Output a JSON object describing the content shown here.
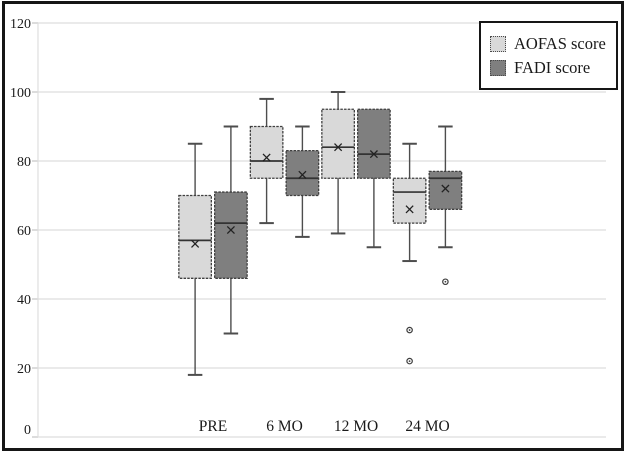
{
  "chart_data": {
    "type": "boxplot",
    "title": "",
    "xlabel": "",
    "ylabel": "",
    "categories": [
      "PRE",
      "6 MO",
      "12 MO",
      "24 MO"
    ],
    "y_axis": {
      "min": 0,
      "max": 120,
      "tick_step": 20,
      "tick_labels": [
        "0",
        "20",
        "40",
        "60",
        "80",
        "100",
        "120"
      ]
    },
    "grid": "horizontal gridlines on",
    "legend": {
      "position": "top-right",
      "border": true
    },
    "series": [
      {
        "name": "AOFAS score",
        "fill_color": "#d9d9d9",
        "boxes": [
          {
            "category": "PRE",
            "min": 18,
            "q1": 46,
            "median": 57,
            "mean": 56,
            "q3": 70,
            "max": 85,
            "outliers": []
          },
          {
            "category": "6 MO",
            "min": 62,
            "q1": 75,
            "median": 80,
            "mean": 81,
            "q3": 90,
            "max": 98,
            "outliers": []
          },
          {
            "category": "12 MO",
            "min": 59,
            "q1": 75,
            "median": 84,
            "mean": 84,
            "q3": 95,
            "max": 100,
            "outliers": []
          },
          {
            "category": "24 MO",
            "min": 51,
            "q1": 62,
            "median": 71,
            "mean": 66,
            "q3": 75,
            "max": 85,
            "outliers": [
              31,
              22
            ]
          }
        ]
      },
      {
        "name": "FADI score",
        "fill_color": "#7f7f7f",
        "boxes": [
          {
            "category": "PRE",
            "min": 30,
            "q1": 46,
            "median": 62,
            "mean": 60,
            "q3": 71,
            "max": 90,
            "outliers": []
          },
          {
            "category": "6 MO",
            "min": 58,
            "q1": 70,
            "median": 75,
            "mean": 76,
            "q3": 83,
            "max": 90,
            "outliers": []
          },
          {
            "category": "12 MO",
            "min": 55,
            "q1": 75,
            "median": 82,
            "mean": 82,
            "q3": 95,
            "max": 95,
            "outliers": []
          },
          {
            "category": "24 MO",
            "min": 55,
            "q1": 66,
            "median": 75,
            "mean": 72,
            "q3": 77,
            "max": 90,
            "outliers": [
              45
            ]
          }
        ]
      }
    ],
    "colors": {
      "light_box_fill": "#d9d9d9",
      "dark_box_fill": "#7f7f7f",
      "box_border": "#3f3f3f",
      "median_line": "#333333",
      "whisker": "#4d4d4d",
      "mean_marker": "#222222",
      "gridline": "#dedede",
      "frame_border": "#161616",
      "text": "#1a1a1a"
    }
  }
}
